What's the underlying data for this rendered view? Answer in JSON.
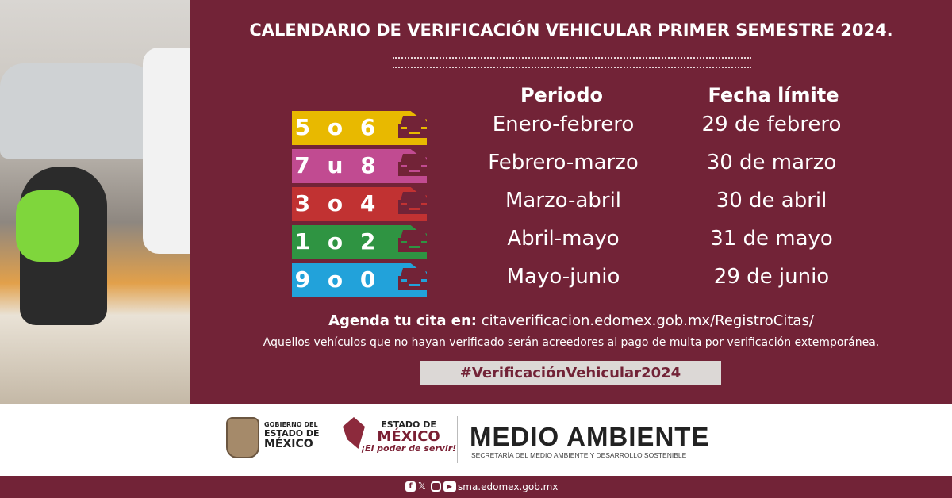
{
  "title": "CALENDARIO DE VERIFICACIÓN VEHICULAR PRIMER SEMESTRE 2024.",
  "headers": {
    "period": "Periodo",
    "deadline": "Fecha límite"
  },
  "rows": [
    {
      "plates": "5 o 6",
      "color": "#e8b900",
      "period": "Enero-febrero",
      "deadline": "29 de febrero"
    },
    {
      "plates": "7 u 8",
      "color": "#c14b91",
      "period": "Febrero-marzo",
      "deadline": "30 de marzo"
    },
    {
      "plates": "3 o 4",
      "color": "#c13232",
      "period": "Marzo-abril",
      "deadline": "30 de abril"
    },
    {
      "plates": "1 o 2",
      "color": "#2f9442",
      "period": "Abril-mayo",
      "deadline": "31 de mayo"
    },
    {
      "plates": "9 o 0",
      "color": "#22a2da",
      "period": "Mayo-junio",
      "deadline": "29 de junio"
    }
  ],
  "agenda": {
    "label": "Agenda tu cita en:",
    "url": "citaverificacion.edomex.gob.mx/RegistroCitas/"
  },
  "note": "Aquellos vehículos que no hayan verificado serán acreedores al pago de multa por verificación extemporánea.",
  "hashtag": "#VerificaciónVehicular2024",
  "footer": {
    "gov_logo": [
      "GOBIERNO DEL",
      "ESTADO DE",
      "MÉXICO"
    ],
    "estado_logo": {
      "line1": "ESTADO DE",
      "line2": "MÉXICO",
      "slogan": "¡El poder de servir!"
    },
    "ministry": "MEDIO AMBIENTE",
    "ministry_sub": "SECRETARÍA DEL MEDIO AMBIENTE Y DESARROLLO SOSTENIBLE",
    "social_icons": [
      "facebook-icon",
      "x-icon",
      "instagram-icon",
      "youtube-icon"
    ],
    "website": "sma.edomex.gob.mx"
  },
  "colors": {
    "background": "#722337",
    "tag_bg": "#dcd8d6"
  }
}
